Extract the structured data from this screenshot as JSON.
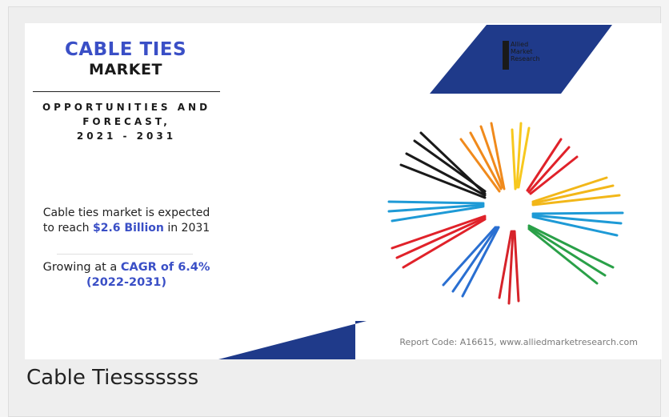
{
  "header": {
    "title_line1": "CABLE TIES",
    "title_line2": "MARKET",
    "subtitle_line1": "OPPORTUNITIES AND",
    "subtitle_line2": "FORECAST,",
    "subtitle_line3": "2021 - 2031"
  },
  "stat_market_size": {
    "prefix": "Cable ties market is expected to reach",
    "value": "$2.6 Billion",
    "suffix": "in 2031"
  },
  "stat_cagr": {
    "prefix": "Growing at a",
    "value": "CAGR of 6.4%",
    "period": "(2022-2031)"
  },
  "brand": {
    "line1": "Allied",
    "line2": "Market",
    "line3": "Research"
  },
  "footer": {
    "report_code": "Report Code: A16615, www.alliedmarketresearch.com"
  },
  "caption": "Cable Tiesssssss",
  "colors": {
    "accent_blue": "#3a4fc6",
    "navy_shape": "#1f3a8a"
  },
  "image": {
    "icon": "cable-ties-bundle-image",
    "tie_colors": [
      "#1a1a1a",
      "#f08a1c",
      "#f7c81e",
      "#e0222a",
      "#f2b719",
      "#1e9ad6",
      "#2aa048",
      "#d6232a",
      "#2a6fd1",
      "#e0222a",
      "#1e9ad6"
    ]
  }
}
